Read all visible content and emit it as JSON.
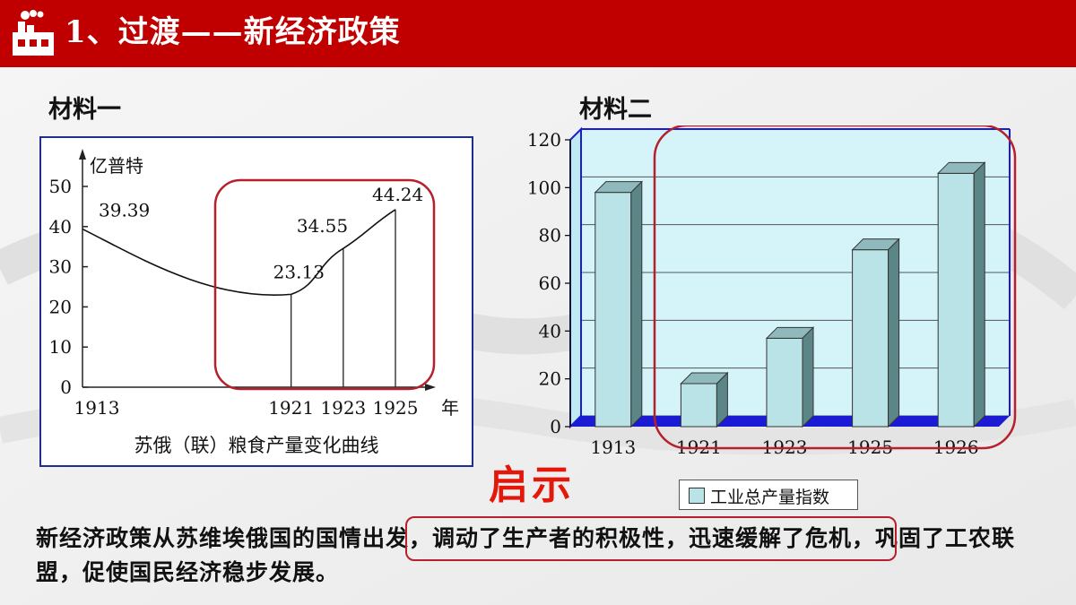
{
  "header": {
    "title": "1、过渡——新经济政策",
    "icon": "factory-icon",
    "color": "#c00000"
  },
  "materials": {
    "one_label": "材料一",
    "two_label": "材料二"
  },
  "chart_data": [
    {
      "type": "line",
      "title": "苏俄（联）粮食产量变化曲线",
      "ylabel": "亿普特",
      "xlabel": "年",
      "ylim": [
        0,
        50
      ],
      "yticks": [
        "0",
        "10",
        "20",
        "30",
        "40",
        "50"
      ],
      "x": [
        "1913",
        "1921",
        "1923",
        "1925"
      ],
      "values": [
        39.39,
        23.13,
        34.55,
        44.24
      ],
      "value_labels": [
        "39.39",
        "23.13",
        "34.55",
        "44.24"
      ]
    },
    {
      "type": "bar",
      "categories": [
        "1913",
        "1921",
        "1923",
        "1925",
        "1926"
      ],
      "series": [
        {
          "name": "工业总产量指数",
          "values": [
            98,
            18,
            37,
            74,
            106
          ]
        }
      ],
      "ylim": [
        0,
        120
      ],
      "yticks": [
        "0",
        "20",
        "40",
        "60",
        "80",
        "100",
        "120"
      ],
      "legend": "bottom",
      "bar_color": "#b9e3e6"
    }
  ],
  "hint": "启示",
  "conclusion": {
    "text": "新经济政策从苏维埃俄国的国情出发，调动了生产者的积极性，迅速缓解了危机，巩固了工农联盟，促使国民经济稳步发展。"
  }
}
